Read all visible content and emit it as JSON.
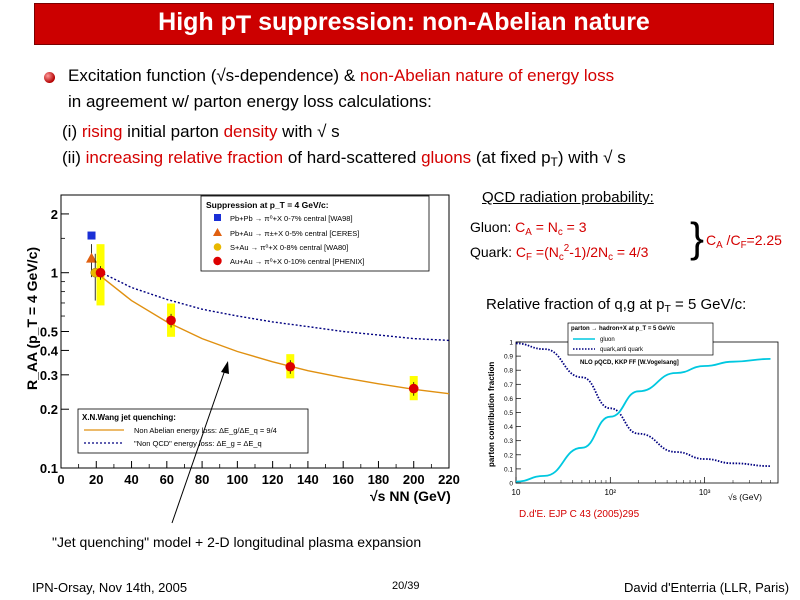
{
  "title": {
    "text_a": "High p",
    "text_sub": "T",
    "text_b": " suppression: non-Abelian nature"
  },
  "bullet": {
    "line1_a": "Excitation function (√s-dependence) & ",
    "line1_b": "non-Abelian nature of energy loss",
    "line2": "in agreement w/ parton energy loss calculations:"
  },
  "points": {
    "p1_a": "(i) ",
    "p1_b": "rising",
    "p1_c": " initial parton ",
    "p1_d": "density",
    "p1_e": " with √ s",
    "p2_a": "(ii) ",
    "p2_b": "increasing relative fraction",
    "p2_c": " of hard-scattered ",
    "p2_d": "gluons",
    "p2_e": " (at fixed p",
    "p2_f": "T",
    "p2_g": ") with √ s"
  },
  "qcd": {
    "heading": "QCD radiation probability:",
    "gluon_a": "Gluon: ",
    "gluon_b": "C",
    "gluon_c": "A",
    "gluon_d": " = N",
    "gluon_e": "c",
    "gluon_f": " = 3",
    "quark_a": "Quark: ",
    "quark_b": "C",
    "quark_c": "F",
    "quark_d": " =(N",
    "quark_e": "c",
    "quark_f": "2",
    "quark_g": "-1)/2N",
    "quark_h": "c",
    "quark_i": " = 4/3",
    "ratio_a": "C",
    "ratio_b": "A",
    "ratio_c": " /C",
    "ratio_d": "F",
    "ratio_e": "=2.25"
  },
  "relfrac": {
    "a": "Relative fraction of q,g at p",
    "b": "T",
    "c": " = 5 GeV/c:"
  },
  "left_plot": {
    "ylabel": "R_AA (p_T = 4 GeV/c)",
    "xlabel": "√s NN (GeV)",
    "x_ticks": [
      "0",
      "20",
      "40",
      "60",
      "80",
      "100",
      "120",
      "140",
      "160",
      "180",
      "200",
      "220"
    ],
    "y_ticks": [
      "0.1",
      "0.2",
      "0.3",
      "0.4",
      "0.5",
      "1",
      "2"
    ],
    "legend_title": "Suppression at p_T = 4 GeV/c:",
    "legend_entries": [
      "Pb+Pb → π⁰+X 0-7% central [WA98]",
      "Pb+Au → π±+X 0-5% central [CERES]",
      "S+Au → π⁰+X 0-8% central [WA80]",
      "Au+Au → π⁰+X 0-10% central [PHENIX]"
    ],
    "theory_title": "X.N.Wang jet quenching:",
    "theory_entries": [
      "Non Abelian energy loss: ΔE_g/ΔE_q = 9/4",
      "\"Non QCD\" energy loss: ΔE_g = ΔE_q"
    ],
    "colors": {
      "pbpb": "#1a2fd6",
      "pbau": "#e06010",
      "sau": "#e8b800",
      "auau": "#dd0000",
      "band": "#ffff00",
      "curve": "#e09010"
    }
  },
  "chart_data": [
    {
      "type": "scatter",
      "title": "Suppression at p_T = 4 GeV/c:",
      "xlabel": "√s NN (GeV)",
      "ylabel": "R_AA (p_T = 4 GeV/c)",
      "xlim": [
        0,
        220
      ],
      "ylim": [
        0.1,
        2.5
      ],
      "yscale": "log",
      "series": [
        {
          "name": "Pb+Pb → π⁰+X 0-7% central [WA98]",
          "x": [
            17.3
          ],
          "y": [
            1.55
          ]
        },
        {
          "name": "Pb+Au → π±+X 0-5% central [CERES]",
          "x": [
            17.3
          ],
          "y": [
            1.18
          ]
        },
        {
          "name": "S+Au → π⁰+X 0-8% central [WA80]",
          "x": [
            19.4
          ],
          "y": [
            1.0
          ]
        },
        {
          "name": "Au+Au → π⁰+X 0-10% central [PHENIX]",
          "x": [
            22.4,
            62.4,
            130,
            200
          ],
          "y": [
            1.0,
            0.57,
            0.33,
            0.255
          ]
        },
        {
          "name": "Non Abelian energy loss: ΔE_g/ΔE_q = 9/4",
          "x": [
            20,
            40,
            60,
            80,
            100,
            120,
            140,
            160,
            180,
            200,
            220
          ],
          "y": [
            1.0,
            0.72,
            0.56,
            0.46,
            0.395,
            0.35,
            0.315,
            0.29,
            0.27,
            0.253,
            0.24
          ]
        },
        {
          "name": "\"Non QCD\" energy loss: ΔE_g = ΔE_q",
          "x": [
            20,
            40,
            60,
            80,
            100,
            120,
            140,
            160,
            180,
            200,
            220
          ],
          "y": [
            1.03,
            0.84,
            0.73,
            0.65,
            0.6,
            0.56,
            0.53,
            0.5,
            0.48,
            0.46,
            0.45
          ]
        }
      ],
      "legend": "top-right"
    },
    {
      "type": "line",
      "title": "parton → hadron+X at p_T = 5 GeV/c",
      "xlabel": "√s (GeV)",
      "ylabel": "parton contribution fraction",
      "xscale": "log",
      "xlim": [
        10,
        6000
      ],
      "ylim": [
        0,
        1
      ],
      "series": [
        {
          "name": "gluon",
          "x": [
            10,
            20,
            50,
            100,
            200,
            500,
            1000,
            2000,
            5000
          ],
          "y": [
            0.01,
            0.05,
            0.25,
            0.47,
            0.65,
            0.78,
            0.83,
            0.86,
            0.88
          ]
        },
        {
          "name": "quark,anti quark",
          "x": [
            10,
            20,
            50,
            100,
            200,
            500,
            1000,
            2000,
            5000
          ],
          "y": [
            0.99,
            0.95,
            0.75,
            0.53,
            0.35,
            0.22,
            0.17,
            0.14,
            0.12
          ]
        }
      ],
      "legend": "top-left",
      "annotation": "NLO pQCD, KKP FF [W.Vogelsang]",
      "y_ticks": [
        "0",
        "0.1",
        "0.2",
        "0.3",
        "0.4",
        "0.5",
        "0.6",
        "0.7",
        "0.8",
        "0.9",
        "1"
      ],
      "x_ticks": [
        "10",
        "10²",
        "10³"
      ]
    }
  ],
  "right_plot": {
    "citation": "D.d'E. EJP C 43 (2005)295",
    "legend_gluon_color": "#00c8e0",
    "legend_quark_color": "#000080"
  },
  "caption": "\"Jet quenching\" model + 2-D longitudinal plasma expansion",
  "footer": {
    "left": "IPN-Orsay, Nov 14th, 2005",
    "center": "20/39",
    "right": "David d'Enterria (LLR, Paris)"
  }
}
